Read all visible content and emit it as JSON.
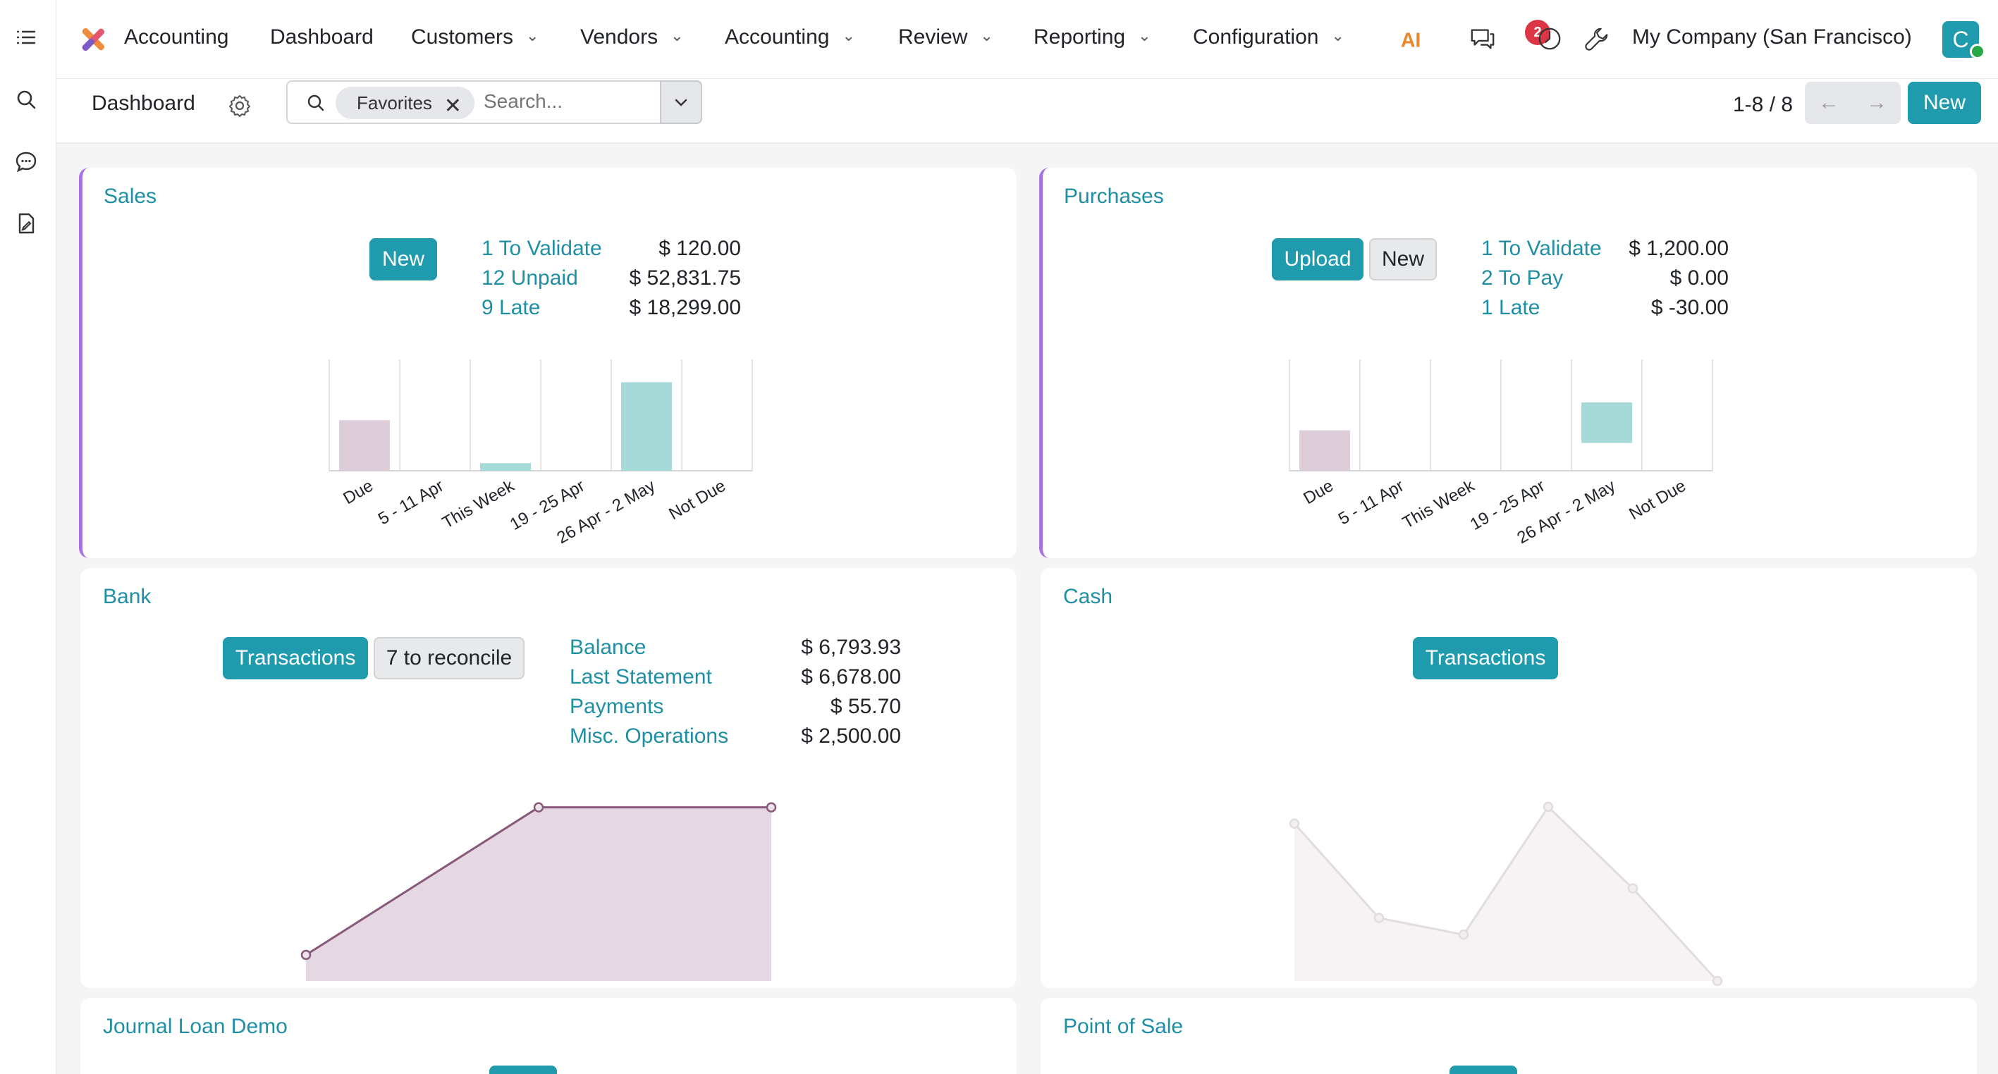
{
  "rail": {
    "icons": [
      "menu-list-icon",
      "search-icon",
      "chat-icon",
      "document-icon"
    ]
  },
  "navbar": {
    "app_name": "Accounting",
    "menus": [
      {
        "label": "Dashboard",
        "dropdown": false
      },
      {
        "label": "Customers",
        "dropdown": true
      },
      {
        "label": "Vendors",
        "dropdown": true
      },
      {
        "label": "Accounting",
        "dropdown": true
      },
      {
        "label": "Review",
        "dropdown": true
      },
      {
        "label": "Reporting",
        "dropdown": true
      },
      {
        "label": "Configuration",
        "dropdown": true
      }
    ],
    "ai_label": "AI",
    "messages_badge": "2",
    "company": "My Company (San Francisco)",
    "avatar_letter": "C"
  },
  "control": {
    "breadcrumb": "Dashboard",
    "facet": "Favorites",
    "search_placeholder": "Search...",
    "pager": "1-8 / 8",
    "new_label": "New"
  },
  "colors": {
    "accent": "#1f9bad",
    "link": "#1f8fa3",
    "past_bar": "#dccdd9",
    "future_bar": "#a6dad8",
    "bank_line": "#875a7b",
    "card_accent": "#a674e0"
  },
  "sales": {
    "title": "Sales",
    "new_label": "New",
    "stats": [
      {
        "label": "1 To Validate",
        "value": "$ 120.00"
      },
      {
        "label": "12 Unpaid",
        "value": "$ 52,831.75"
      },
      {
        "label": "9 Late",
        "value": "$ 18,299.00"
      }
    ]
  },
  "purchases": {
    "title": "Purchases",
    "upload_label": "Upload",
    "new_label": "New",
    "stats": [
      {
        "label": "1 To Validate",
        "value": "$ 1,200.00"
      },
      {
        "label": "2 To Pay",
        "value": "$ 0.00"
      },
      {
        "label": "1 Late",
        "value": "$ -30.00"
      }
    ]
  },
  "bank": {
    "title": "Bank",
    "transactions_label": "Transactions",
    "reconcile_label": "7 to reconcile",
    "stats": [
      {
        "label": "Balance",
        "value": "$ 6,793.93"
      },
      {
        "label": "Last Statement",
        "value": "$ 6,678.00"
      },
      {
        "label": "Payments",
        "value": "$ 55.70"
      },
      {
        "label": "Misc. Operations",
        "value": "$ 2,500.00"
      }
    ]
  },
  "cash": {
    "title": "Cash",
    "transactions_label": "Transactions"
  },
  "journal_loan": {
    "title": "Journal Loan Demo"
  },
  "pos": {
    "title": "Point of Sale"
  },
  "chart_data": [
    {
      "type": "bar",
      "panel": "sales",
      "categories": [
        "Due",
        "5 - 11 Apr",
        "This Week",
        "19 - 25 Apr",
        "26 Apr - 2 May",
        "Not Due"
      ],
      "values": [
        1.0,
        0,
        0.15,
        0,
        1.75,
        0
      ],
      "bar_colors": [
        "#dccdd9",
        "#a6dad8",
        "#a6dad8",
        "#a6dad8",
        "#a6dad8",
        "#a6dad8"
      ],
      "ylim": [
        0,
        2.2
      ],
      "grid": true
    },
    {
      "type": "bar",
      "panel": "purchases",
      "categories": [
        "Due",
        "5 - 11 Apr",
        "This Week",
        "19 - 25 Apr",
        "26 Apr - 2 May",
        "Not Due"
      ],
      "values": [
        0.8,
        0,
        0,
        0,
        0.8,
        0
      ],
      "bar_offsets": [
        0,
        0,
        0,
        0,
        0.55,
        0
      ],
      "bar_colors": [
        "#dccdd9",
        "#a6dad8",
        "#a6dad8",
        "#a6dad8",
        "#a6dad8",
        "#a6dad8"
      ],
      "ylim": [
        0,
        2.2
      ],
      "grid": true
    },
    {
      "type": "area",
      "panel": "bank",
      "x": [
        0,
        1,
        2
      ],
      "values": [
        0.15,
        1.0,
        1.0
      ],
      "ylim": [
        0,
        1.12
      ],
      "line_color": "#875a7b",
      "fill_color": "#e6d8e2"
    },
    {
      "type": "area",
      "panel": "cash",
      "x": [
        0,
        1,
        2,
        3,
        4,
        5
      ],
      "values": [
        0.85,
        0.34,
        0.25,
        0.94,
        0.5,
        0
      ],
      "ylim": [
        0,
        1.05
      ],
      "line_color": "#e2dce0",
      "fill_color": "#f5f3f4"
    }
  ]
}
